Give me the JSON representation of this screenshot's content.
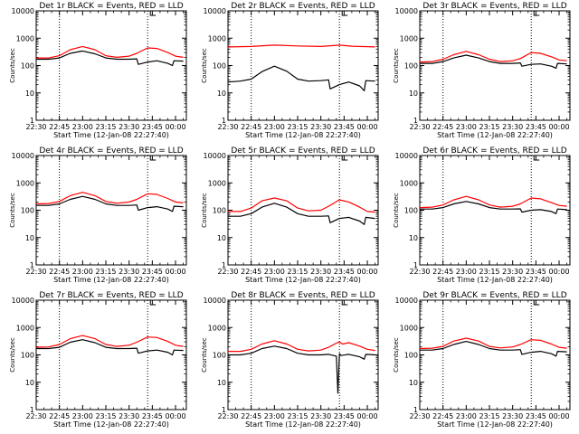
{
  "chart_data": [
    {
      "type": "line",
      "title": "Det 1r BLACK = Events, RED = LLD",
      "xlabel": "Start Time (12-Jan-08 22:27:40)",
      "ylabel": "Counts/sec",
      "yscale": "log",
      "ylim": [
        1,
        10000
      ],
      "xlim": [
        "22:30",
        "00:07"
      ],
      "xticks": [
        "22:30",
        "22:45",
        "23:00",
        "23:15",
        "23:30",
        "23:45",
        "00:00"
      ],
      "yticks": [
        "1",
        "10",
        "100",
        "1000",
        "10000"
      ],
      "vlines": [
        "22:45",
        "23:42"
      ],
      "series": [
        {
          "color": "#000000",
          "x": [
            "22:30",
            "22:38",
            "22:45",
            "22:52",
            "23:00",
            "23:08",
            "23:15",
            "23:22",
            "23:30",
            "23:35",
            "23:36",
            "23:42",
            "23:48",
            "23:55",
            "23:58",
            "23:59",
            "00:05"
          ],
          "y": [
            170,
            170,
            190,
            280,
            340,
            270,
            190,
            170,
            170,
            175,
            110,
            135,
            150,
            120,
            100,
            150,
            145
          ]
        },
        {
          "color": "#ff0000",
          "x": [
            "22:30",
            "22:38",
            "22:45",
            "22:52",
            "23:00",
            "23:08",
            "23:15",
            "23:22",
            "23:30",
            "23:35",
            "23:42",
            "23:48",
            "23:55",
            "00:00",
            "00:05"
          ],
          "y": [
            190,
            190,
            230,
            380,
            500,
            380,
            230,
            200,
            220,
            280,
            440,
            420,
            300,
            220,
            200
          ]
        }
      ]
    },
    {
      "type": "line",
      "title": "Det 2r BLACK = Events, RED = LLD",
      "xlabel": "Start Time (12-Jan-08 22:27:40)",
      "ylabel": "Counts/sec",
      "yscale": "log",
      "ylim": [
        1,
        10000
      ],
      "xlim": [
        "22:30",
        "00:07"
      ],
      "xticks": [
        "22:30",
        "22:45",
        "23:00",
        "23:15",
        "23:30",
        "23:45",
        "00:00"
      ],
      "yticks": [
        "1",
        "10",
        "100",
        "1000",
        "10000"
      ],
      "vlines": [
        "22:45",
        "23:42"
      ],
      "series": [
        {
          "color": "#000000",
          "x": [
            "22:30",
            "22:38",
            "22:45",
            "22:52",
            "23:00",
            "23:08",
            "23:15",
            "23:22",
            "23:30",
            "23:35",
            "23:36",
            "23:42",
            "23:48",
            "23:55",
            "23:58",
            "23:59",
            "00:05"
          ],
          "y": [
            25,
            27,
            32,
            60,
            95,
            62,
            32,
            27,
            28,
            30,
            14,
            20,
            25,
            18,
            12,
            28,
            27
          ]
        },
        {
          "color": "#ff0000",
          "x": [
            "22:30",
            "22:45",
            "23:00",
            "23:15",
            "23:30",
            "23:42",
            "23:50",
            "00:05"
          ],
          "y": [
            480,
            500,
            560,
            520,
            500,
            560,
            510,
            480
          ]
        }
      ]
    },
    {
      "type": "line",
      "title": "Det 3r BLACK = Events, RED = LLD",
      "xlabel": "Start Time (12-Jan-08 22:27:40)",
      "ylabel": "Counts/sec",
      "yscale": "log",
      "ylim": [
        1,
        10000
      ],
      "xlim": [
        "22:30",
        "00:07"
      ],
      "xticks": [
        "22:30",
        "22:45",
        "23:00",
        "23:15",
        "23:30",
        "23:45",
        "00:00"
      ],
      "yticks": [
        "1",
        "10",
        "100",
        "1000",
        "10000"
      ],
      "vlines": [
        "22:45",
        "23:42"
      ],
      "series": [
        {
          "color": "#000000",
          "x": [
            "22:30",
            "22:38",
            "22:45",
            "22:52",
            "23:00",
            "23:08",
            "23:15",
            "23:22",
            "23:30",
            "23:35",
            "23:36",
            "23:42",
            "23:48",
            "23:55",
            "23:58",
            "23:59",
            "00:05"
          ],
          "y": [
            120,
            120,
            140,
            190,
            240,
            190,
            140,
            120,
            120,
            125,
            95,
            110,
            115,
            95,
            80,
            120,
            115
          ]
        },
        {
          "color": "#ff0000",
          "x": [
            "22:30",
            "22:38",
            "22:45",
            "22:52",
            "23:00",
            "23:08",
            "23:15",
            "23:22",
            "23:30",
            "23:35",
            "23:42",
            "23:48",
            "23:55",
            "00:00",
            "00:05"
          ],
          "y": [
            135,
            140,
            170,
            250,
            330,
            250,
            170,
            140,
            150,
            180,
            300,
            280,
            210,
            160,
            150
          ]
        }
      ]
    },
    {
      "type": "line",
      "title": "Det 4r BLACK = Events, RED = LLD",
      "xlabel": "Start Time (12-Jan-08 22:27:40)",
      "ylabel": "Counts/sec",
      "yscale": "log",
      "ylim": [
        1,
        10000
      ],
      "xlim": [
        "22:30",
        "00:07"
      ],
      "xticks": [
        "22:30",
        "22:45",
        "23:00",
        "23:15",
        "23:30",
        "23:45",
        "00:00"
      ],
      "yticks": [
        "1",
        "10",
        "100",
        "1000",
        "10000"
      ],
      "vlines": [
        "22:45",
        "23:42"
      ],
      "series": [
        {
          "color": "#000000",
          "x": [
            "22:30",
            "22:38",
            "22:45",
            "22:52",
            "23:00",
            "23:08",
            "23:15",
            "23:22",
            "23:30",
            "23:35",
            "23:36",
            "23:42",
            "23:48",
            "23:55",
            "23:58",
            "23:59",
            "00:05"
          ],
          "y": [
            150,
            150,
            170,
            250,
            320,
            250,
            170,
            150,
            150,
            155,
            100,
            125,
            135,
            110,
            90,
            140,
            135
          ]
        },
        {
          "color": "#ff0000",
          "x": [
            "22:30",
            "22:38",
            "22:45",
            "22:52",
            "23:00",
            "23:08",
            "23:15",
            "23:22",
            "23:30",
            "23:35",
            "23:42",
            "23:48",
            "23:55",
            "00:00",
            "00:05"
          ],
          "y": [
            170,
            175,
            210,
            340,
            450,
            340,
            210,
            180,
            200,
            250,
            400,
            380,
            270,
            200,
            185
          ]
        }
      ]
    },
    {
      "type": "line",
      "title": "Det 5r BLACK = Events, RED = LLD",
      "xlabel": "Start Time (12-Jan-08 22:27:40)",
      "ylabel": "Counts/sec",
      "yscale": "log",
      "ylim": [
        1,
        10000
      ],
      "xlim": [
        "22:30",
        "00:07"
      ],
      "xticks": [
        "22:30",
        "22:45",
        "23:00",
        "23:15",
        "23:30",
        "23:45",
        "00:00"
      ],
      "yticks": [
        "1",
        "10",
        "100",
        "1000",
        "10000"
      ],
      "vlines": [
        "22:45",
        "23:42"
      ],
      "series": [
        {
          "color": "#000000",
          "x": [
            "22:30",
            "22:38",
            "22:45",
            "22:52",
            "23:00",
            "23:08",
            "23:15",
            "23:22",
            "23:30",
            "23:35",
            "23:36",
            "23:42",
            "23:48",
            "23:55",
            "23:58",
            "23:59",
            "00:05"
          ],
          "y": [
            60,
            60,
            75,
            130,
            180,
            130,
            75,
            60,
            60,
            62,
            35,
            50,
            55,
            40,
            30,
            55,
            50
          ]
        },
        {
          "color": "#ff0000",
          "x": [
            "22:30",
            "22:38",
            "22:45",
            "22:52",
            "23:00",
            "23:08",
            "23:15",
            "23:22",
            "23:30",
            "23:35",
            "23:42",
            "23:48",
            "23:55",
            "00:00",
            "00:05"
          ],
          "y": [
            90,
            90,
            120,
            220,
            280,
            220,
            120,
            95,
            100,
            140,
            240,
            200,
            130,
            90,
            85
          ]
        }
      ]
    },
    {
      "type": "line",
      "title": "Det 6r BLACK = Events, RED = LLD",
      "xlabel": "Start Time (12-Jan-08 22:27:40)",
      "ylabel": "Counts/sec",
      "yscale": "log",
      "ylim": [
        1,
        10000
      ],
      "xlim": [
        "22:30",
        "00:07"
      ],
      "xticks": [
        "22:30",
        "22:45",
        "23:00",
        "23:15",
        "23:30",
        "23:45",
        "00:00"
      ],
      "yticks": [
        "1",
        "10",
        "100",
        "1000",
        "10000"
      ],
      "vlines": [
        "22:45",
        "23:42"
      ],
      "series": [
        {
          "color": "#000000",
          "x": [
            "22:30",
            "22:38",
            "22:45",
            "22:52",
            "23:00",
            "23:08",
            "23:15",
            "23:22",
            "23:30",
            "23:35",
            "23:36",
            "23:42",
            "23:48",
            "23:55",
            "23:58",
            "23:59",
            "00:05"
          ],
          "y": [
            110,
            110,
            125,
            170,
            210,
            170,
            125,
            110,
            110,
            112,
            85,
            100,
            105,
            90,
            75,
            110,
            105
          ]
        },
        {
          "color": "#ff0000",
          "x": [
            "22:30",
            "22:38",
            "22:45",
            "22:52",
            "23:00",
            "23:08",
            "23:15",
            "23:22",
            "23:30",
            "23:35",
            "23:42",
            "23:48",
            "23:55",
            "00:00",
            "00:05"
          ],
          "y": [
            125,
            130,
            155,
            240,
            320,
            240,
            155,
            130,
            140,
            170,
            280,
            260,
            190,
            150,
            140
          ]
        }
      ]
    },
    {
      "type": "line",
      "title": "Det 7r BLACK = Events, RED = LLD",
      "xlabel": "Start Time (12-Jan-08 22:27:40)",
      "ylabel": "Counts/sec",
      "yscale": "log",
      "ylim": [
        1,
        10000
      ],
      "xlim": [
        "22:30",
        "00:07"
      ],
      "xticks": [
        "22:30",
        "22:45",
        "23:00",
        "23:15",
        "23:30",
        "23:45",
        "00:00"
      ],
      "yticks": [
        "1",
        "10",
        "100",
        "1000",
        "10000"
      ],
      "vlines": [
        "22:45",
        "23:42"
      ],
      "series": [
        {
          "color": "#000000",
          "x": [
            "22:30",
            "22:38",
            "22:45",
            "22:52",
            "23:00",
            "23:08",
            "23:15",
            "23:22",
            "23:30",
            "23:35",
            "23:36",
            "23:42",
            "23:48",
            "23:55",
            "23:58",
            "23:59",
            "00:05"
          ],
          "y": [
            170,
            170,
            190,
            290,
            360,
            280,
            190,
            170,
            170,
            175,
            115,
            140,
            150,
            125,
            100,
            150,
            145
          ]
        },
        {
          "color": "#ff0000",
          "x": [
            "22:30",
            "22:38",
            "22:45",
            "22:52",
            "23:00",
            "23:08",
            "23:15",
            "23:22",
            "23:30",
            "23:35",
            "23:42",
            "23:48",
            "23:55",
            "00:00",
            "00:05"
          ],
          "y": [
            190,
            195,
            240,
            390,
            510,
            390,
            240,
            205,
            225,
            290,
            450,
            430,
            310,
            225,
            205
          ]
        }
      ]
    },
    {
      "type": "line",
      "title": "Det 8r BLACK = Events, RED = LLD",
      "xlabel": "Start Time (12-Jan-08 22:27:40)",
      "ylabel": "Counts/sec",
      "yscale": "log",
      "ylim": [
        1,
        10000
      ],
      "xlim": [
        "22:30",
        "00:07"
      ],
      "xticks": [
        "22:30",
        "22:45",
        "23:00",
        "23:15",
        "23:30",
        "23:45",
        "00:00"
      ],
      "yticks": [
        "1",
        "10",
        "100",
        "1000",
        "10000"
      ],
      "vlines": [
        "22:45",
        "23:42"
      ],
      "series": [
        {
          "color": "#000000",
          "x": [
            "22:30",
            "22:38",
            "22:45",
            "22:52",
            "23:00",
            "23:08",
            "23:15",
            "23:22",
            "23:30",
            "23:35",
            "23:40",
            "23:41",
            "23:42",
            "23:43",
            "23:48",
            "23:55",
            "23:58",
            "23:59",
            "00:05"
          ],
          "y": [
            100,
            100,
            115,
            170,
            210,
            170,
            115,
            100,
            100,
            105,
            90,
            4,
            110,
            95,
            105,
            85,
            70,
            105,
            100
          ]
        },
        {
          "color": "#ff0000",
          "x": [
            "22:30",
            "22:38",
            "22:45",
            "22:52",
            "23:00",
            "23:08",
            "23:15",
            "23:22",
            "23:30",
            "23:35",
            "23:40",
            "23:42",
            "23:44",
            "23:48",
            "23:55",
            "00:00",
            "00:05"
          ],
          "y": [
            135,
            135,
            160,
            250,
            330,
            250,
            160,
            140,
            150,
            190,
            270,
            300,
            250,
            280,
            210,
            160,
            145
          ]
        }
      ]
    },
    {
      "type": "line",
      "title": "Det 9r BLACK = Events, RED = LLD",
      "xlabel": "Start Time (12-Jan-08 22:27:40)",
      "ylabel": "Counts/sec",
      "yscale": "log",
      "ylim": [
        1,
        10000
      ],
      "xlim": [
        "22:30",
        "00:07"
      ],
      "xticks": [
        "22:30",
        "22:45",
        "23:00",
        "23:15",
        "23:30",
        "23:45",
        "00:00"
      ],
      "yticks": [
        "1",
        "10",
        "100",
        "1000",
        "10000"
      ],
      "vlines": [
        "22:45",
        "23:42"
      ],
      "series": [
        {
          "color": "#000000",
          "x": [
            "22:30",
            "22:38",
            "22:45",
            "22:52",
            "23:00",
            "23:08",
            "23:15",
            "23:22",
            "23:30",
            "23:35",
            "23:36",
            "23:42",
            "23:48",
            "23:55",
            "23:58",
            "23:59",
            "00:05"
          ],
          "y": [
            150,
            150,
            170,
            240,
            310,
            240,
            170,
            150,
            150,
            155,
            105,
            125,
            135,
            110,
            90,
            135,
            130
          ]
        },
        {
          "color": "#ff0000",
          "x": [
            "22:30",
            "22:38",
            "22:45",
            "22:52",
            "23:00",
            "23:08",
            "23:15",
            "23:22",
            "23:30",
            "23:35",
            "23:42",
            "23:48",
            "23:55",
            "00:00",
            "00:05"
          ],
          "y": [
            170,
            175,
            205,
            320,
            410,
            320,
            205,
            180,
            195,
            240,
            360,
            340,
            250,
            190,
            175
          ]
        }
      ]
    }
  ]
}
